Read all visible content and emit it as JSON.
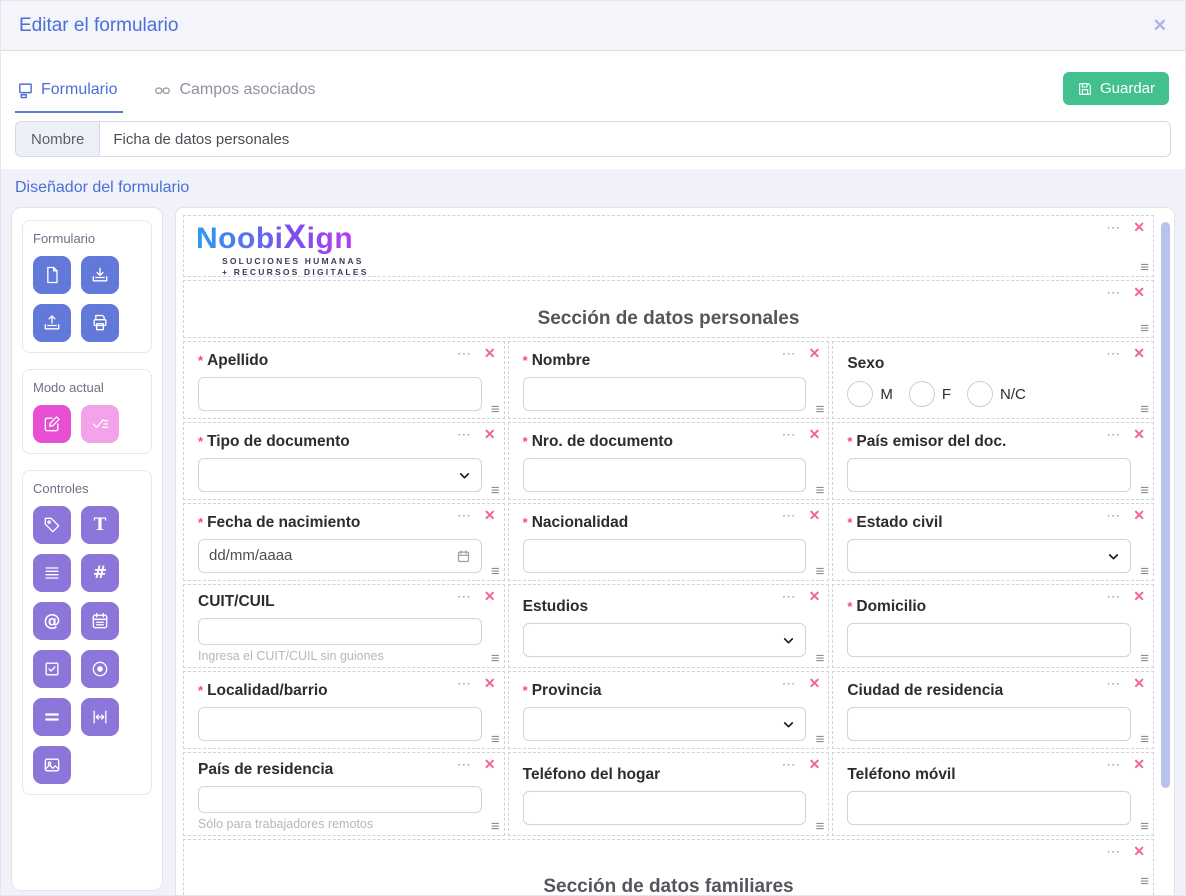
{
  "modal": {
    "title": "Editar el formulario"
  },
  "toolbar": {
    "tabs": [
      {
        "label": "Formulario",
        "active": true
      },
      {
        "label": "Campos asociados",
        "active": false
      }
    ],
    "save_label": "Guardar"
  },
  "name_field": {
    "label": "Nombre",
    "value": "Ficha de datos personales"
  },
  "designer": {
    "title": "Diseñador del formulario",
    "palette": {
      "groups": [
        {
          "label": "Formulario",
          "buttons": [
            "new-document",
            "import",
            "export",
            "print-pdf"
          ]
        },
        {
          "label": "Modo actual",
          "buttons": [
            "edit-mode",
            "validate-mode"
          ]
        },
        {
          "label": "Controles",
          "buttons": [
            "tag",
            "text",
            "textarea",
            "number",
            "email",
            "date",
            "checkbox",
            "radio",
            "select",
            "spacer",
            "image"
          ]
        }
      ]
    }
  },
  "canvas": {
    "logo": {
      "brand_prefix": "Noobi",
      "brand_x": "X",
      "brand_suffix": "ign",
      "tagline_line1": "SOLUCIONES HUMANAS",
      "tagline_line2": "+ RECURSOS DIGITALES"
    },
    "sections": [
      "Sección de datos personales",
      "Sección de datos familiares"
    ],
    "rows": [
      [
        {
          "label": "Apellido",
          "required": true,
          "control": "input"
        },
        {
          "label": "Nombre",
          "required": true,
          "control": "input"
        },
        {
          "label": "Sexo",
          "required": false,
          "control": "radio",
          "options": [
            "M",
            "F",
            "N/C"
          ]
        }
      ],
      [
        {
          "label": "Tipo de documento",
          "required": true,
          "control": "select"
        },
        {
          "label": "Nro. de documento",
          "required": true,
          "control": "input"
        },
        {
          "label": "País emisor del doc.",
          "required": true,
          "control": "input"
        }
      ],
      [
        {
          "label": "Fecha de nacimiento",
          "required": true,
          "control": "date",
          "placeholder": "dd/mm/aaaa"
        },
        {
          "label": "Nacionalidad",
          "required": true,
          "control": "input"
        },
        {
          "label": "Estado civil",
          "required": true,
          "control": "select"
        }
      ],
      [
        {
          "label": "CUIT/CUIL",
          "required": false,
          "control": "input",
          "helper": "Ingresa el CUIT/CUIL sin guiones"
        },
        {
          "label": "Estudios",
          "required": false,
          "control": "select"
        },
        {
          "label": "Domicilio",
          "required": true,
          "control": "input"
        }
      ],
      [
        {
          "label": "Localidad/barrio",
          "required": true,
          "control": "input"
        },
        {
          "label": "Provincia",
          "required": true,
          "control": "select"
        },
        {
          "label": "Ciudad de residencia",
          "required": false,
          "control": "input"
        }
      ],
      [
        {
          "label": "País de residencia",
          "required": false,
          "control": "input",
          "helper": "Sólo para trabajadores remotos"
        },
        {
          "label": "Teléfono del hogar",
          "required": false,
          "control": "input"
        },
        {
          "label": "Teléfono móvil",
          "required": false,
          "control": "input"
        }
      ]
    ]
  },
  "icons": {
    "close": "✕",
    "more": "⋯",
    "handle": "≡",
    "asterisk": "*"
  },
  "colors": {
    "primary_blue": "#4a6fd6",
    "save_green": "#42c08e",
    "palette_blue": "#6379d9",
    "palette_pink": "#e94fd3",
    "palette_pink_light": "#f2a3e9",
    "palette_purple": "#8d76da",
    "danger_pink": "#f06595",
    "logo_gradient_start": "#2e9bf0",
    "logo_gradient_end": "#b43df0",
    "scrollbar": "#b9c2ec"
  }
}
